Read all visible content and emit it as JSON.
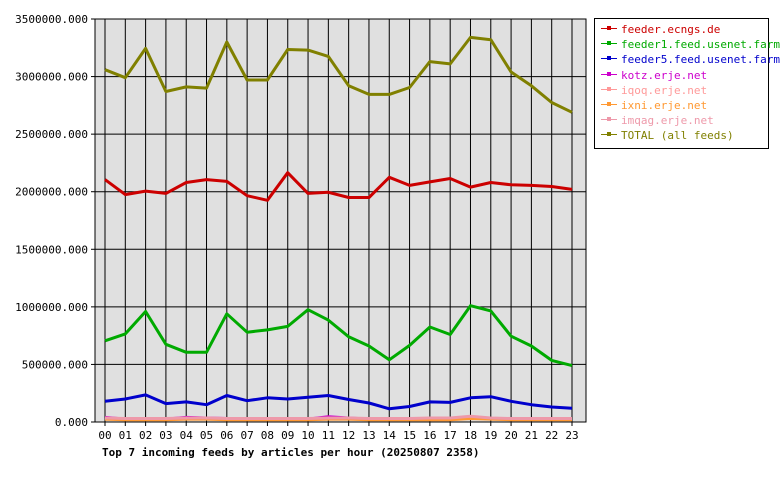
{
  "chart_data": {
    "type": "line",
    "title": "Top 7 incoming feeds by articles per hour (20250807 2358)",
    "xlabel": "",
    "ylabel": "",
    "ylim": [
      0,
      3500000
    ],
    "y_ticks": [
      "0.000",
      "500000.000",
      "1000000.000",
      "1500000.000",
      "2000000.000",
      "2500000.000",
      "3000000.000",
      "3500000.000"
    ],
    "categories": [
      "00",
      "01",
      "02",
      "03",
      "04",
      "05",
      "06",
      "07",
      "08",
      "09",
      "10",
      "11",
      "12",
      "13",
      "14",
      "15",
      "16",
      "17",
      "18",
      "19",
      "20",
      "21",
      "22",
      "23"
    ],
    "grid": true,
    "legend_position": "right",
    "series": [
      {
        "name": "feeder.ecngs.de",
        "color": "#cc0000",
        "values": [
          2105000,
          1975000,
          2005000,
          1985000,
          2080000,
          2105000,
          2090000,
          1965000,
          1925000,
          2165000,
          1985000,
          1995000,
          1950000,
          1950000,
          2125000,
          2055000,
          2085000,
          2115000,
          2040000,
          2080000,
          2060000,
          2055000,
          2045000,
          2020000
        ]
      },
      {
        "name": "feeder1.feed.usenet.farm",
        "color": "#00aa00",
        "values": [
          705000,
          765000,
          960000,
          675000,
          605000,
          605000,
          940000,
          780000,
          800000,
          830000,
          975000,
          885000,
          740000,
          660000,
          540000,
          665000,
          825000,
          760000,
          1010000,
          965000,
          745000,
          660000,
          535000,
          490000
        ]
      },
      {
        "name": "feeder5.feed.usenet.farm",
        "color": "#0000cc",
        "values": [
          180000,
          200000,
          235000,
          160000,
          175000,
          150000,
          230000,
          185000,
          210000,
          200000,
          215000,
          230000,
          195000,
          165000,
          115000,
          135000,
          175000,
          170000,
          210000,
          220000,
          180000,
          150000,
          130000,
          120000
        ]
      },
      {
        "name": "kotz.erje.net",
        "color": "#cc00cc",
        "values": [
          40000,
          25000,
          25000,
          25000,
          40000,
          35000,
          30000,
          25000,
          25000,
          25000,
          25000,
          45000,
          35000,
          25000,
          25000,
          25000,
          30000,
          30000,
          35000,
          30000,
          25000,
          25000,
          25000,
          25000
        ]
      },
      {
        "name": "iqoq.erje.net",
        "color": "#ff9999",
        "values": [
          30000,
          25000,
          25000,
          25000,
          30000,
          30000,
          25000,
          25000,
          25000,
          25000,
          25000,
          30000,
          30000,
          25000,
          25000,
          25000,
          25000,
          25000,
          40000,
          30000,
          25000,
          25000,
          25000,
          25000
        ]
      },
      {
        "name": "ixni.erje.net",
        "color": "#ff9933",
        "values": [
          25000,
          20000,
          20000,
          20000,
          25000,
          25000,
          20000,
          20000,
          20000,
          20000,
          20000,
          25000,
          25000,
          20000,
          20000,
          20000,
          20000,
          20000,
          30000,
          25000,
          20000,
          20000,
          20000,
          20000
        ]
      },
      {
        "name": "imqag.erje.net",
        "color": "#ee99aa",
        "values": [
          35000,
          30000,
          30000,
          30000,
          35000,
          35000,
          30000,
          30000,
          30000,
          30000,
          30000,
          35000,
          35000,
          30000,
          30000,
          30000,
          35000,
          35000,
          50000,
          35000,
          30000,
          30000,
          30000,
          30000
        ]
      },
      {
        "name": "TOTAL (all feeds)",
        "color": "#808000",
        "values": [
          3060000,
          2990000,
          3245000,
          2870000,
          2910000,
          2900000,
          3300000,
          2970000,
          2970000,
          3235000,
          3230000,
          3175000,
          2920000,
          2845000,
          2845000,
          2905000,
          3130000,
          3110000,
          3340000,
          3320000,
          3040000,
          2920000,
          2775000,
          2690000
        ]
      }
    ]
  }
}
